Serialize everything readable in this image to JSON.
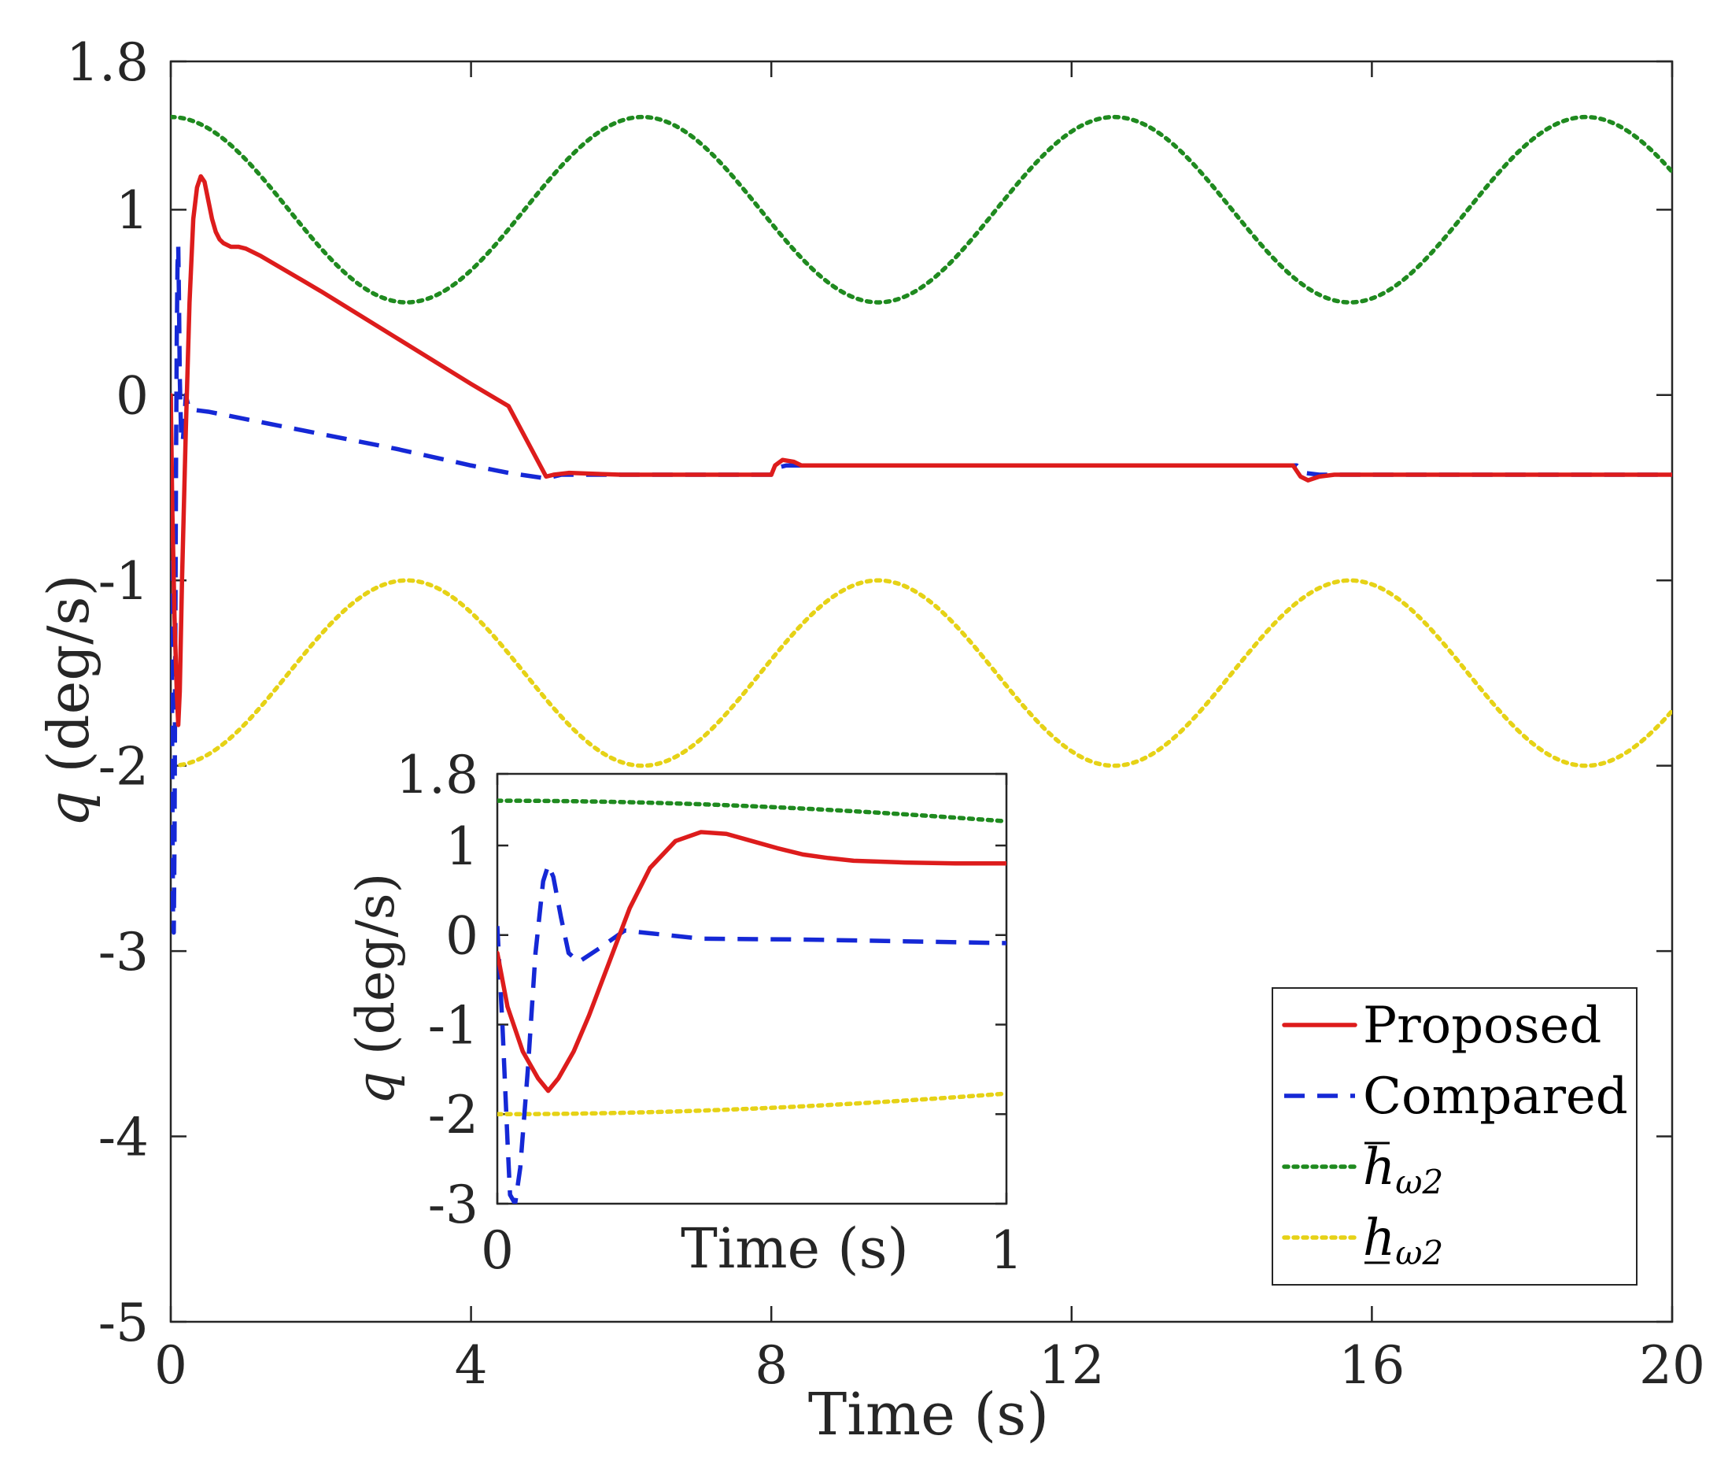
{
  "chart_data": [
    {
      "type": "line",
      "name": "main",
      "xlabel": "Time (s)",
      "ylabel_symbol": "q",
      "ylabel_unit": "(deg/s)",
      "xlim": [
        0,
        20
      ],
      "ylim": [
        -5,
        1.8
      ],
      "xticks": [
        0,
        4,
        8,
        12,
        16,
        20
      ],
      "xtick_labels": [
        "0",
        "4",
        "8",
        "12",
        "16",
        "20"
      ],
      "yticks": [
        1.8,
        1,
        0,
        -1,
        -2,
        -3,
        -4,
        -5
      ],
      "ytick_labels": [
        "1.8",
        "1",
        "0",
        "-1",
        "-2",
        "-3",
        "-4",
        "-5"
      ],
      "grid": false,
      "legend_position": "bottom-right",
      "series": [
        {
          "name": "Proposed",
          "color": "#dd1c1c",
          "style": "solid",
          "x": [
            0,
            0.02,
            0.05,
            0.08,
            0.1,
            0.12,
            0.15,
            0.2,
            0.25,
            0.3,
            0.35,
            0.4,
            0.45,
            0.5,
            0.55,
            0.6,
            0.65,
            0.7,
            0.8,
            0.9,
            1.0,
            1.2,
            2,
            3,
            4,
            4.5,
            5.0,
            5.1,
            5.3,
            6,
            7.5,
            8.0,
            8.05,
            8.15,
            8.3,
            8.4,
            9,
            12,
            14.95,
            15.05,
            15.15,
            15.3,
            15.5,
            16,
            18,
            20
          ],
          "y": [
            0,
            -0.6,
            -1.2,
            -1.6,
            -1.78,
            -1.6,
            -1.0,
            -0.2,
            0.5,
            0.95,
            1.12,
            1.18,
            1.15,
            1.05,
            0.95,
            0.88,
            0.84,
            0.82,
            0.8,
            0.8,
            0.79,
            0.75,
            0.56,
            0.31,
            0.06,
            -0.06,
            -0.44,
            -0.43,
            -0.42,
            -0.43,
            -0.43,
            -0.43,
            -0.38,
            -0.35,
            -0.36,
            -0.38,
            -0.38,
            -0.38,
            -0.38,
            -0.44,
            -0.46,
            -0.44,
            -0.43,
            -0.43,
            -0.43,
            -0.43
          ]
        },
        {
          "name": "Compared",
          "color": "#1528d6",
          "style": "dashed",
          "x": [
            0,
            0.01,
            0.02,
            0.03,
            0.04,
            0.05,
            0.06,
            0.07,
            0.08,
            0.09,
            0.1,
            0.11,
            0.12,
            0.14,
            0.16,
            0.18,
            0.2,
            0.23,
            0.26,
            0.3,
            0.5,
            1,
            2,
            3,
            4,
            4.5,
            5,
            5.2,
            6,
            8,
            8.1,
            8.2,
            8.3,
            10,
            15,
            15.1,
            15.3,
            16,
            20
          ],
          "y": [
            0,
            -0.8,
            -2.0,
            -2.8,
            -2.9,
            -2.4,
            -1.4,
            -0.4,
            0.3,
            0.7,
            0.8,
            0.5,
            0.1,
            -0.25,
            -0.25,
            -0.15,
            0.0,
            -0.05,
            -0.08,
            -0.08,
            -0.09,
            -0.13,
            -0.21,
            -0.29,
            -0.38,
            -0.42,
            -0.45,
            -0.43,
            -0.43,
            -0.43,
            -0.39,
            -0.38,
            -0.38,
            -0.38,
            -0.38,
            -0.42,
            -0.43,
            -0.43,
            -0.43
          ]
        },
        {
          "name": "h̄ω2",
          "name_base": "h",
          "name_sub": "ω2",
          "decoration": "overbar",
          "color": "#1f8a1f",
          "style": "dotted",
          "function": "0.5*cos(t)+1.0",
          "x_start": 0,
          "x_end": 20
        },
        {
          "name": "h̲ω2",
          "name_base": "h",
          "name_sub": "ω2",
          "decoration": "underbar",
          "color": "#e6d216",
          "style": "dotted",
          "function": "-0.5*cos(t)-1.5",
          "x_start": 0,
          "x_end": 20
        }
      ]
    },
    {
      "type": "line",
      "name": "inset",
      "xlabel": "Time (s)",
      "ylabel_symbol": "q",
      "ylabel_unit": "(deg/s)",
      "xlim": [
        0,
        1
      ],
      "ylim": [
        -3,
        1.8
      ],
      "xticks": [
        0,
        1
      ],
      "xtick_labels": [
        "0",
        "1"
      ],
      "yticks": [
        1.8,
        1,
        0,
        -1,
        -2,
        -3
      ],
      "ytick_labels": [
        "1.8",
        "1",
        "0",
        "-1",
        "-2",
        "-3"
      ],
      "grid": false,
      "series": [
        {
          "name": "Proposed",
          "color": "#dd1c1c",
          "style": "solid",
          "x": [
            0,
            0.02,
            0.05,
            0.08,
            0.1,
            0.12,
            0.15,
            0.18,
            0.22,
            0.26,
            0.3,
            0.35,
            0.4,
            0.45,
            0.5,
            0.55,
            0.6,
            0.65,
            0.7,
            0.8,
            0.9,
            1.0
          ],
          "y": [
            -0.2,
            -0.8,
            -1.3,
            -1.6,
            -1.74,
            -1.6,
            -1.3,
            -0.9,
            -0.3,
            0.3,
            0.75,
            1.05,
            1.15,
            1.13,
            1.05,
            0.97,
            0.9,
            0.86,
            0.83,
            0.81,
            0.8,
            0.8
          ]
        },
        {
          "name": "Compared",
          "color": "#1528d6",
          "style": "dashed",
          "x": [
            0,
            0.01,
            0.02,
            0.025,
            0.035,
            0.045,
            0.06,
            0.075,
            0.09,
            0.1,
            0.11,
            0.125,
            0.14,
            0.16,
            0.2,
            0.25,
            0.3,
            0.4,
            0.6,
            0.8,
            1.0
          ],
          "y": [
            0.1,
            -1.0,
            -2.3,
            -2.9,
            -3.0,
            -2.6,
            -1.5,
            -0.2,
            0.6,
            0.78,
            0.65,
            0.2,
            -0.2,
            -0.3,
            -0.15,
            0.05,
            0.02,
            -0.04,
            -0.05,
            -0.07,
            -0.09
          ]
        },
        {
          "name": "h̄ω2",
          "color": "#1f8a1f",
          "style": "dotted",
          "function": "0.5*cos(t)+1.0",
          "x_start": 0,
          "x_end": 1
        },
        {
          "name": "h̲ω2",
          "color": "#e6d216",
          "style": "dotted",
          "function": "-0.5*cos(t)-1.5",
          "x_start": 0,
          "x_end": 1
        }
      ]
    }
  ],
  "legend": {
    "entries": [
      {
        "label": "Proposed",
        "color": "#dd1c1c",
        "style": "solid"
      },
      {
        "label": "Compared",
        "color": "#1528d6",
        "style": "dashed"
      },
      {
        "label_base": "h",
        "label_sub": "ω2",
        "decoration": "overbar",
        "color": "#1f8a1f",
        "style": "dotted"
      },
      {
        "label_base": "h",
        "label_sub": "ω2",
        "decoration": "underbar",
        "color": "#e6d216",
        "style": "dotted"
      }
    ]
  }
}
